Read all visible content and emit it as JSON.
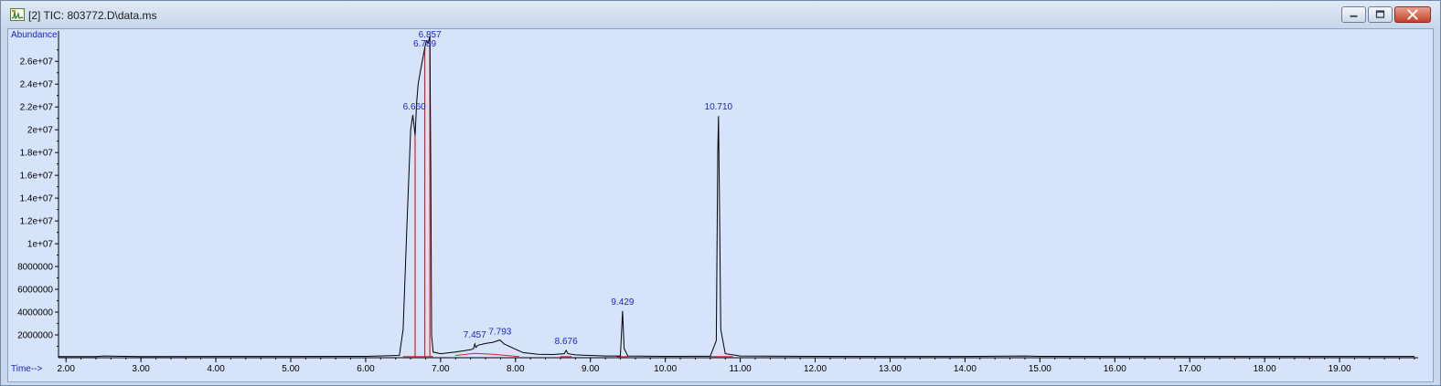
{
  "window": {
    "title": "[2] TIC: 803772.D\\data.ms",
    "app_icon": "chromatogram-app-icon",
    "buttons": [
      "minimize-icon",
      "maximize-icon",
      "close-icon"
    ]
  },
  "colors": {
    "trace": "#000000",
    "baseline": "#e02020",
    "labels": "#1a22c8",
    "background": "#d6e4fb"
  },
  "chart_data": {
    "type": "line",
    "ylabel": "Abundance",
    "xlabel": "Time-->",
    "xlim": [
      1.9,
      20.0
    ],
    "ylim": [
      0,
      28500000.0
    ],
    "x_ticks": [
      "2.00",
      "3.00",
      "4.00",
      "5.00",
      "6.00",
      "7.00",
      "8.00",
      "9.00",
      "10.00",
      "11.00",
      "12.00",
      "13.00",
      "14.00",
      "15.00",
      "16.00",
      "17.00",
      "18.00",
      "19.00"
    ],
    "y_ticks": [
      "2000000",
      "4000000",
      "6000000",
      "8000000",
      "1e+07",
      "1.2e+07",
      "1.4e+07",
      "1.6e+07",
      "1.8e+07",
      "2e+07",
      "2.2e+07",
      "2.4e+07",
      "2.6e+07"
    ],
    "peak_labels": [
      "6.660",
      "6.789",
      "6.857",
      "7.457",
      "7.793",
      "8.676",
      "9.429",
      "10.710"
    ],
    "series": [
      {
        "x": [
          1.9,
          2.4,
          2.5,
          3.0,
          4.0,
          5.0,
          6.0,
          6.45,
          6.5,
          6.55,
          6.6,
          6.63,
          6.66,
          6.68,
          6.7,
          6.74,
          6.789,
          6.81,
          6.835,
          6.857,
          6.87,
          6.88,
          6.9,
          7.0,
          7.2,
          7.4,
          7.44,
          7.457,
          7.47,
          7.5,
          7.6,
          7.7,
          7.793,
          7.85,
          7.95,
          8.1,
          8.3,
          8.5,
          8.65,
          8.676,
          8.7,
          8.8,
          9.2,
          9.4,
          9.429,
          9.45,
          9.5,
          10.0,
          10.6,
          10.68,
          10.7,
          10.71,
          10.72,
          10.74,
          10.8,
          11.0,
          12.0,
          13.0,
          14.0,
          14.8,
          15.0,
          16.0,
          17.0,
          18.0,
          19.0,
          20.0
        ],
        "y": [
          100000,
          100000,
          150000,
          100000,
          110000,
          110000,
          120000,
          200000,
          2500000,
          11500000,
          20000000,
          21300000,
          19500000,
          22300000,
          24000000,
          25500000,
          27200000,
          27800000,
          27600000,
          28200000,
          16000000,
          2000000,
          500000,
          350000,
          500000,
          700000,
          800000,
          1200000,
          900000,
          1100000,
          1250000,
          1350000,
          1550000,
          1200000,
          900000,
          450000,
          300000,
          280000,
          350000,
          650000,
          350000,
          250000,
          150000,
          150000,
          4100000,
          800000,
          150000,
          120000,
          130000,
          1500000,
          18000000,
          21200000,
          15000000,
          2500000,
          350000,
          150000,
          120000,
          110000,
          110000,
          150000,
          120000,
          110000,
          110000,
          110000,
          110000,
          110000
        ]
      }
    ],
    "baselines": [
      {
        "x": [
          6.5,
          6.9
        ],
        "y": [
          100000,
          100000
        ]
      },
      {
        "x": [
          7.2,
          7.45,
          7.7,
          8.05
        ],
        "y": [
          200000,
          380000,
          300000,
          100000
        ]
      },
      {
        "x": [
          8.6,
          8.75
        ],
        "y": [
          100000,
          100000
        ]
      },
      {
        "x": [
          9.35,
          9.5
        ],
        "y": [
          100000,
          100000
        ]
      },
      {
        "x": [
          10.6,
          10.9
        ],
        "y": [
          100000,
          100000
        ]
      }
    ],
    "peak_marks": [
      {
        "x": 6.66,
        "y": 19500000
      },
      {
        "x": 6.789,
        "y": 27200000
      },
      {
        "x": 6.857,
        "y": 28200000
      }
    ],
    "grid": false,
    "legend": "none"
  }
}
